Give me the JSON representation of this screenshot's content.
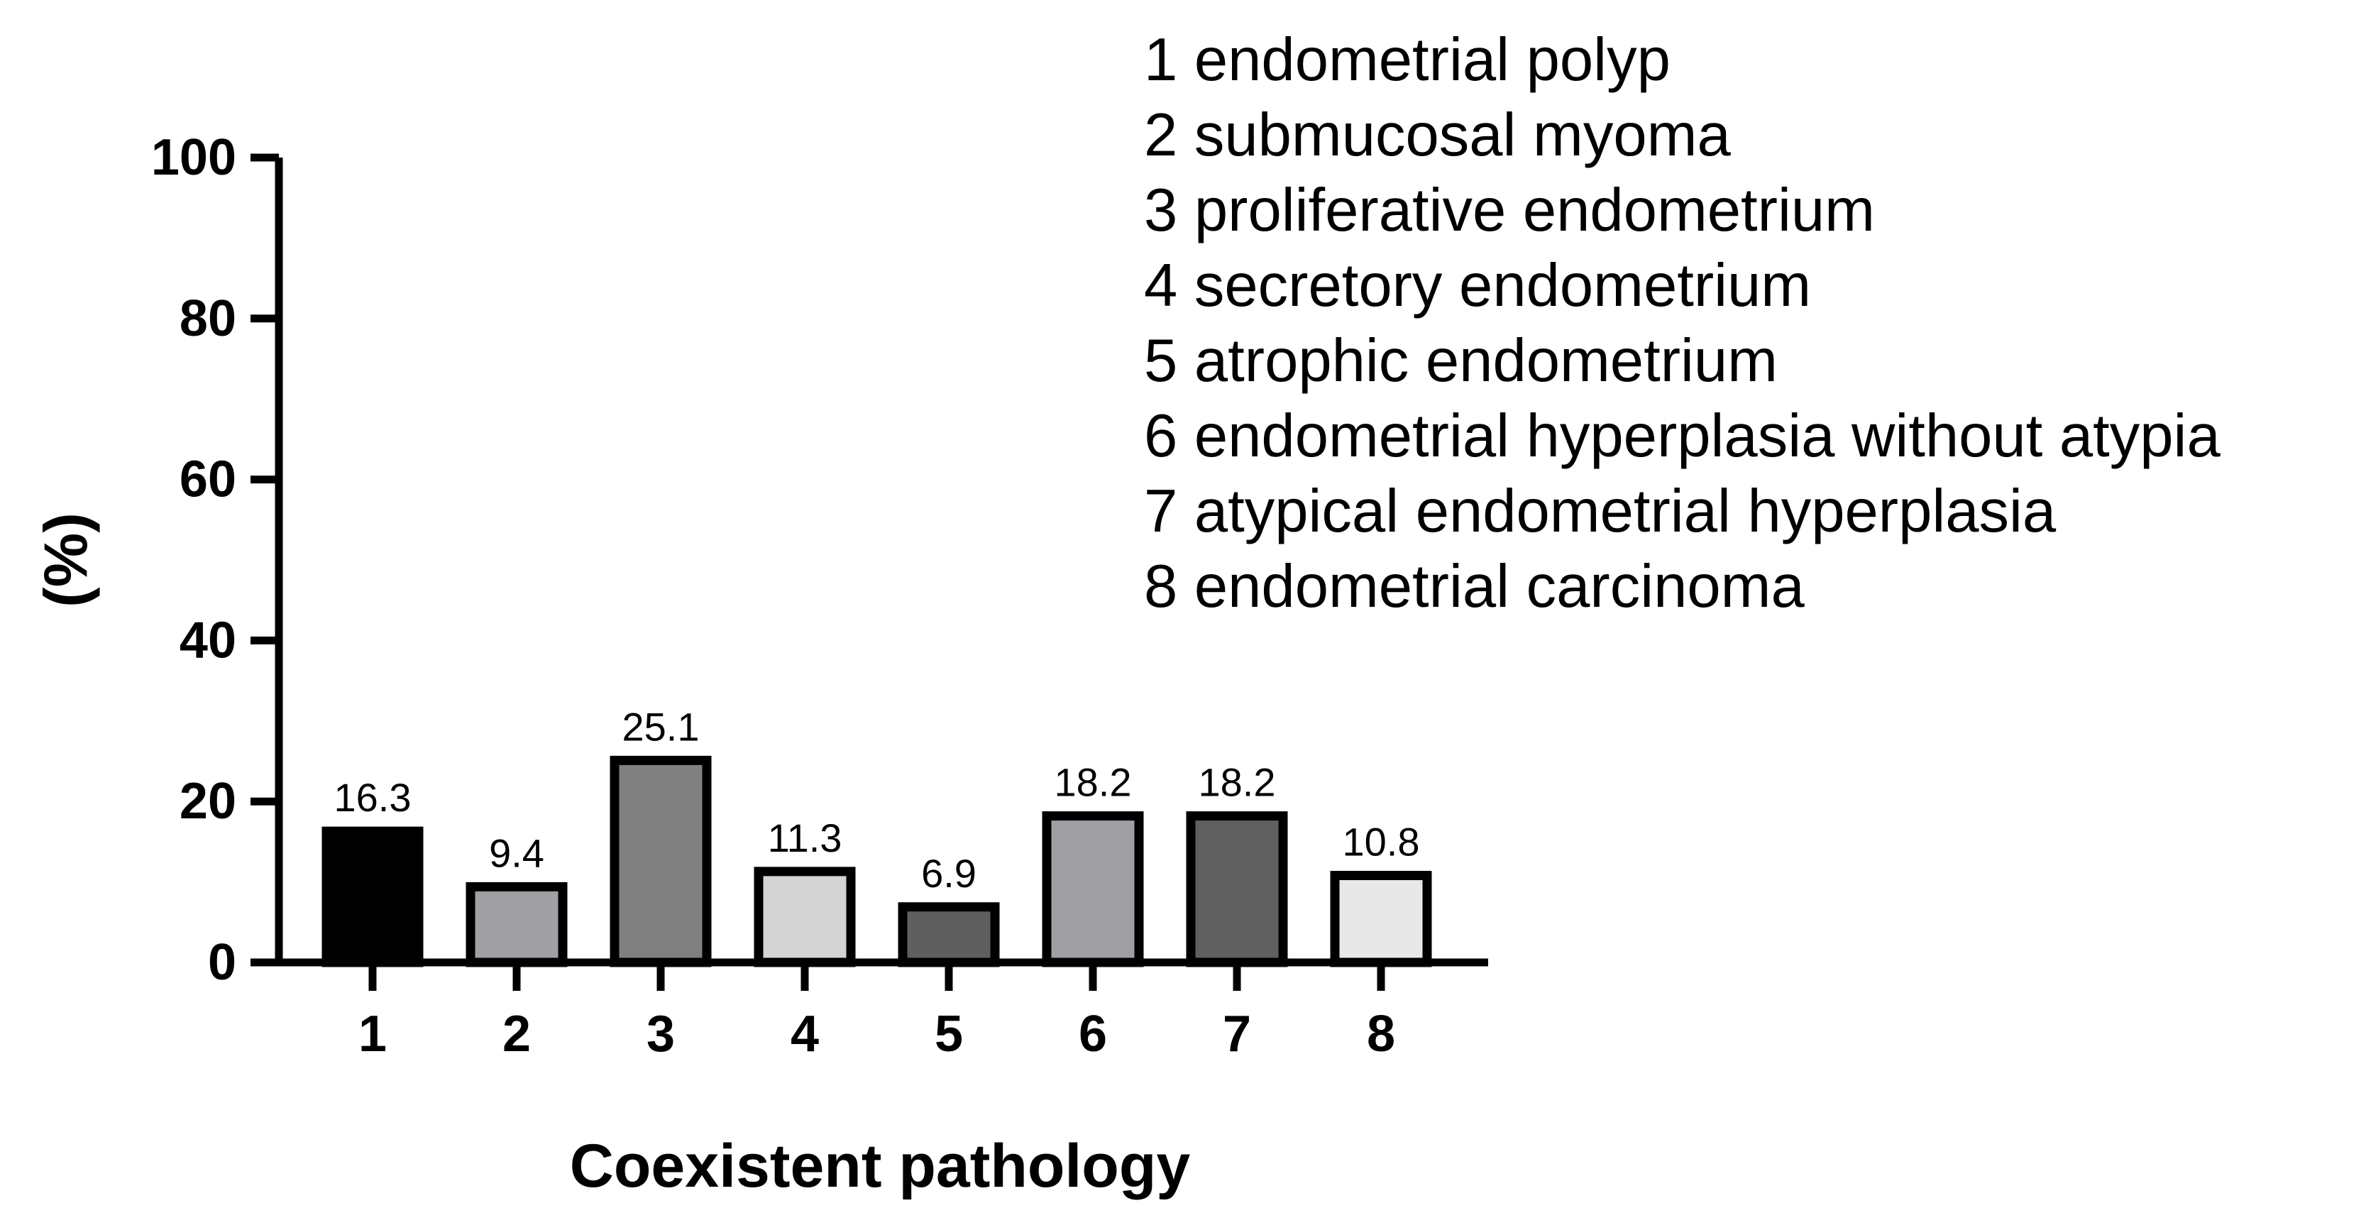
{
  "chart_data": {
    "type": "bar",
    "categories": [
      "1",
      "2",
      "3",
      "4",
      "5",
      "6",
      "7",
      "8"
    ],
    "values": [
      16.3,
      9.4,
      25.1,
      11.3,
      6.9,
      18.2,
      18.2,
      10.8
    ],
    "data_labels": [
      "16.3",
      "9.4",
      "25.1",
      "11.3",
      "6.9",
      "18.2",
      "18.2",
      "10.8"
    ],
    "bar_colors": [
      "#000000",
      "#a0a0a4",
      "#808080",
      "#d4d4d4",
      "#5f5f5f",
      "#a0a0a4",
      "#606060",
      "#e8e8e8"
    ],
    "xlabel": "Coexistent pathology",
    "ylabel": "(%)",
    "ylim": [
      0,
      100
    ],
    "yticks": [
      0,
      20,
      40,
      60,
      80,
      100
    ],
    "grid": false,
    "legend_position": "top-right",
    "legend": [
      "1 endometrial polyp",
      "2 submucosal myoma",
      "3 proliferative endometrium",
      "4 secretory endometrium",
      "5 atrophic endometrium",
      "6 endometrial hyperplasia without atypia",
      "7 atypical endometrial hyperplasia",
      "8 endometrial carcinoma"
    ]
  }
}
